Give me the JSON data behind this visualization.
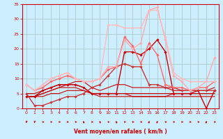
{
  "title": "",
  "xlabel": "Vent moyen/en rafales ( km/h )",
  "bg_color": "#cceeff",
  "grid_color": "#aacccc",
  "xlim": [
    -0.5,
    23.5
  ],
  "ylim": [
    0,
    35
  ],
  "yticks": [
    0,
    5,
    10,
    15,
    20,
    25,
    30,
    35
  ],
  "xticks": [
    0,
    1,
    2,
    3,
    4,
    5,
    6,
    7,
    8,
    9,
    10,
    11,
    12,
    13,
    14,
    15,
    16,
    17,
    18,
    19,
    20,
    21,
    22,
    23
  ],
  "series": [
    {
      "x": [
        0,
        1,
        2,
        3,
        4,
        5,
        6,
        7,
        8,
        9,
        10,
        11,
        12,
        13,
        14,
        15,
        16,
        17,
        18,
        19,
        20,
        21,
        22,
        23
      ],
      "y": [
        4,
        4,
        5,
        6,
        7,
        7,
        7,
        6,
        5,
        5,
        5,
        5,
        5,
        5,
        5,
        5,
        5,
        5,
        5,
        5,
        5,
        5,
        5,
        5
      ],
      "color": "#cc0000",
      "lw": 0.8,
      "marker": null
    },
    {
      "x": [
        0,
        1,
        2,
        3,
        4,
        5,
        6,
        7,
        8,
        9,
        10,
        11,
        12,
        13,
        14,
        15,
        16,
        17,
        18,
        19,
        20,
        21,
        22,
        23
      ],
      "y": [
        4,
        4,
        5,
        6,
        7,
        8,
        8,
        7,
        5,
        5,
        5,
        5,
        5,
        4,
        4,
        4,
        4,
        4,
        5,
        5,
        5,
        5,
        5,
        5
      ],
      "color": "#cc0000",
      "lw": 0.8,
      "marker": null
    },
    {
      "x": [
        0,
        1,
        2,
        3,
        4,
        5,
        6,
        7,
        8,
        9,
        10,
        11,
        12,
        13,
        14,
        15,
        16,
        17,
        18,
        19,
        20,
        21,
        22,
        23
      ],
      "y": [
        4,
        4,
        4,
        5,
        5,
        6,
        6,
        6,
        5,
        4,
        4,
        4,
        4,
        4,
        4,
        4,
        4,
        4,
        4,
        4,
        4,
        4,
        4,
        4
      ],
      "color": "#cc0000",
      "lw": 0.8,
      "marker": null
    },
    {
      "x": [
        0,
        1,
        2,
        3,
        4,
        5,
        6,
        7,
        8,
        9,
        10,
        11,
        12,
        13,
        14,
        15,
        16,
        17,
        18,
        19,
        20,
        21,
        22,
        23
      ],
      "y": [
        5,
        5,
        6,
        7,
        8,
        8,
        9,
        9,
        7,
        6,
        7,
        8,
        8,
        7,
        7,
        7,
        7,
        7,
        6,
        6,
        6,
        6,
        6,
        7
      ],
      "color": "#cc0000",
      "lw": 0.8,
      "marker": null
    },
    {
      "x": [
        0,
        1,
        2,
        3,
        4,
        5,
        6,
        7,
        8,
        9,
        10,
        11,
        12,
        13,
        14,
        15,
        16,
        17,
        18,
        19,
        20,
        21,
        22,
        23
      ],
      "y": [
        4,
        4,
        6,
        7,
        8,
        8,
        8,
        7,
        5,
        5,
        5,
        5,
        19,
        19,
        18,
        20,
        23,
        19,
        5,
        5,
        5,
        6,
        0,
        6
      ],
      "color": "#cc0000",
      "lw": 1.0,
      "marker": "D",
      "ms": 1.8
    },
    {
      "x": [
        0,
        1,
        2,
        3,
        4,
        5,
        6,
        7,
        8,
        9,
        10,
        11,
        12,
        13,
        14,
        15,
        16,
        17,
        18,
        19,
        20,
        21,
        22,
        23
      ],
      "y": [
        5,
        1,
        1,
        2,
        3,
        4,
        4,
        5,
        7,
        8,
        11,
        14,
        15,
        14,
        14,
        8,
        8,
        7,
        7,
        6,
        6,
        6,
        6,
        6
      ],
      "color": "#cc3333",
      "lw": 1.0,
      "marker": "D",
      "ms": 1.8
    },
    {
      "x": [
        0,
        1,
        2,
        3,
        4,
        5,
        6,
        7,
        8,
        9,
        10,
        11,
        12,
        13,
        14,
        15,
        16,
        17,
        18,
        19,
        20,
        21,
        22,
        23
      ],
      "y": [
        8,
        6,
        7,
        9,
        10,
        11,
        10,
        9,
        9,
        10,
        13,
        14,
        24,
        21,
        15,
        22,
        18,
        8,
        7,
        7,
        6,
        7,
        7,
        9
      ],
      "color": "#ff6666",
      "lw": 1.0,
      "marker": "D",
      "ms": 1.8
    },
    {
      "x": [
        0,
        1,
        2,
        3,
        4,
        5,
        6,
        7,
        8,
        9,
        10,
        11,
        12,
        13,
        14,
        15,
        16,
        17,
        18,
        19,
        20,
        21,
        22,
        23
      ],
      "y": [
        8,
        6,
        8,
        10,
        11,
        12,
        10,
        9,
        9,
        10,
        14,
        14,
        23,
        20,
        22,
        33,
        34,
        23,
        11,
        9,
        6,
        7,
        9,
        17
      ],
      "color": "#ffaaaa",
      "lw": 1.0,
      "marker": "D",
      "ms": 1.8
    },
    {
      "x": [
        0,
        1,
        2,
        3,
        4,
        5,
        6,
        7,
        8,
        9,
        10,
        11,
        12,
        13,
        14,
        15,
        16,
        17,
        18,
        19,
        20,
        21,
        22,
        23
      ],
      "y": [
        8,
        6,
        8,
        10,
        11,
        12,
        10,
        9,
        9,
        10,
        28,
        28,
        27,
        27,
        27,
        33,
        33,
        24,
        12,
        10,
        9,
        9,
        9,
        9
      ],
      "color": "#ffbbbb",
      "lw": 1.0,
      "marker": "D",
      "ms": 1.8
    }
  ],
  "arrow_angles": [
    225,
    225,
    90,
    90,
    90,
    90,
    90,
    315,
    90,
    315,
    90,
    315,
    90,
    90,
    90,
    45,
    45,
    90,
    90,
    90,
    90,
    90,
    45,
    90
  ],
  "label_color": "#cc0000",
  "tick_color": "#cc0000",
  "axis_color": "#cc0000"
}
